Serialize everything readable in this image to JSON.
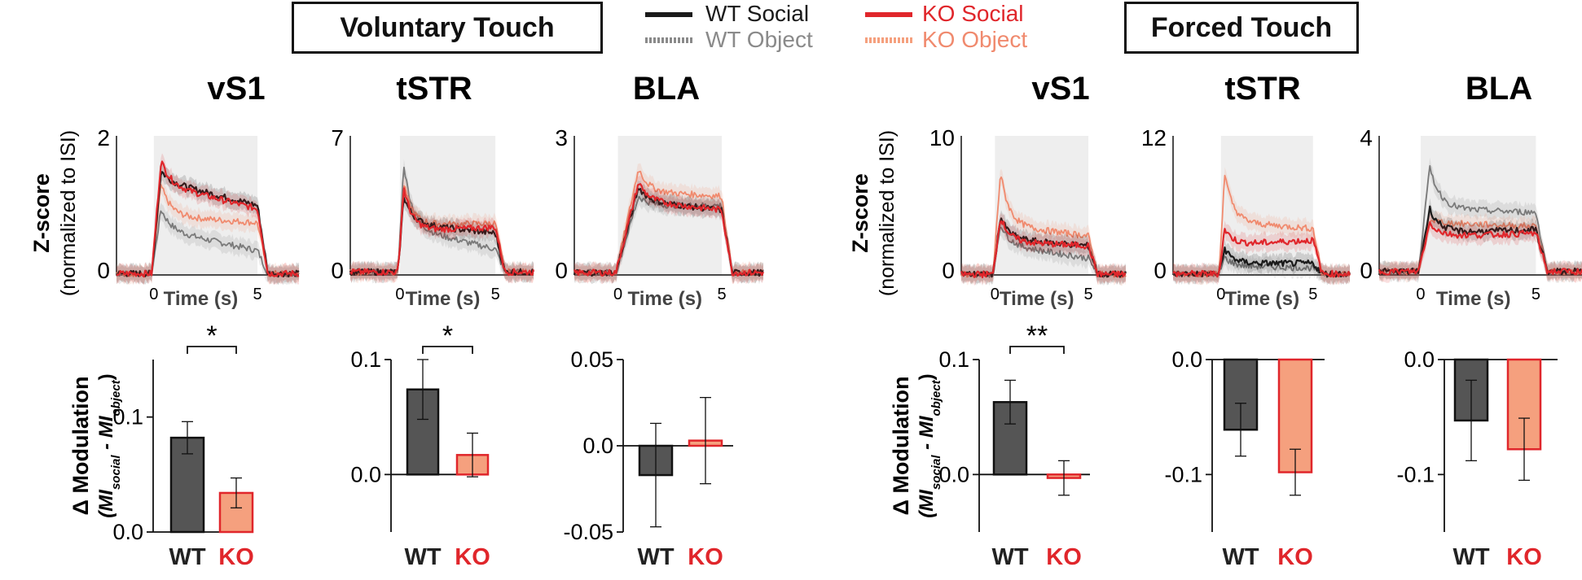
{
  "headers": {
    "voluntary": "Voluntary Touch",
    "forced": "Forced Touch"
  },
  "legend": {
    "wt_social": "WT Social",
    "wt_object": "WT Object",
    "ko_social": "KO Social",
    "ko_object": "KO Object"
  },
  "colors": {
    "wt_social": "#1a1a1a",
    "wt_object": "#7a7a7a",
    "ko_social": "#e0262b",
    "ko_object": "#f08a6e",
    "wt_bar": "#555555",
    "ko_bar": "#f5a07e",
    "ko_label": "#e0262b",
    "stim_shade": "#eeeeee"
  },
  "trace_ylabel": [
    "Z-score",
    "(normalized to ISI)"
  ],
  "bar_ylabel": [
    "Δ Modulation",
    "(MI",
    "social",
    " - MI",
    "object",
    ")"
  ],
  "chart_data": [
    {
      "type": "line",
      "region": "vS1",
      "condition": "Voluntary Touch",
      "title": "vS1",
      "xlabel": "Time (s)",
      "xticks": [
        "0",
        "5"
      ],
      "xlim": [
        -1.8,
        7
      ],
      "stim_window": [
        0,
        5
      ],
      "ylim": [
        0,
        2
      ],
      "yticks": [
        "0",
        "2"
      ],
      "series": [
        {
          "name": "WT Social",
          "peak_t": 0.35,
          "peak": 1.5,
          "plateau_start": 1.35,
          "plateau_end": 1.0,
          "baseline": 0.02
        },
        {
          "name": "WT Object",
          "peak_t": 0.35,
          "peak": 0.95,
          "plateau_start": 0.65,
          "plateau_end": 0.35,
          "baseline": 0.02
        },
        {
          "name": "KO Social",
          "peak_t": 0.35,
          "peak": 1.65,
          "plateau_start": 1.3,
          "plateau_end": 0.95,
          "baseline": 0.02
        },
        {
          "name": "KO Object",
          "peak_t": 0.35,
          "peak": 1.3,
          "plateau_start": 0.85,
          "plateau_end": 0.75,
          "baseline": 0.02
        }
      ]
    },
    {
      "type": "line",
      "region": "tSTR",
      "condition": "Voluntary Touch",
      "title": "tSTR",
      "xlabel": "Time (s)",
      "xticks": [
        "0",
        "5"
      ],
      "xlim": [
        -2.6,
        7
      ],
      "stim_window": [
        0,
        5
      ],
      "ylim": [
        0,
        7
      ],
      "yticks": [
        "0",
        "7"
      ],
      "series": [
        {
          "name": "WT Social",
          "peak_t": 0.2,
          "peak": 4.0,
          "plateau_start": 2.6,
          "plateau_end": 2.1,
          "baseline": 0.15
        },
        {
          "name": "WT Object",
          "peak_t": 0.2,
          "peak": 5.6,
          "plateau_start": 2.4,
          "plateau_end": 1.3,
          "baseline": 0.15
        },
        {
          "name": "KO Social",
          "peak_t": 0.2,
          "peak": 4.4,
          "plateau_start": 2.2,
          "plateau_end": 2.4,
          "baseline": 0.15
        },
        {
          "name": "KO Object",
          "peak_t": 0.2,
          "peak": 4.6,
          "plateau_start": 2.5,
          "plateau_end": 2.6,
          "baseline": 0.15
        }
      ]
    },
    {
      "type": "line",
      "region": "BLA",
      "condition": "Voluntary Touch",
      "title": "BLA",
      "xlabel": "Time (s)",
      "xticks": [
        "0",
        "5"
      ],
      "xlim": [
        -2.1,
        7
      ],
      "stim_window": [
        0,
        5
      ],
      "ylim": [
        0,
        3
      ],
      "yticks": [
        "0",
        "3"
      ],
      "series": [
        {
          "name": "WT Social",
          "peak_t": 1.0,
          "peak": 1.9,
          "plateau_start": 1.6,
          "plateau_end": 1.4,
          "baseline": 0.05
        },
        {
          "name": "WT Object",
          "peak_t": 1.0,
          "peak": 1.7,
          "plateau_start": 1.5,
          "plateau_end": 1.5,
          "baseline": 0.05
        },
        {
          "name": "KO Social",
          "peak_t": 1.0,
          "peak": 2.0,
          "plateau_start": 1.6,
          "plateau_end": 1.4,
          "baseline": 0.05
        },
        {
          "name": "KO Object",
          "peak_t": 1.0,
          "peak": 2.3,
          "plateau_start": 1.8,
          "plateau_end": 1.7,
          "baseline": 0.05
        }
      ]
    },
    {
      "type": "line",
      "region": "vS1",
      "condition": "Forced Touch",
      "title": "vS1",
      "xlabel": "Time (s)",
      "xticks": [
        "0",
        "5"
      ],
      "xlim": [
        -1.8,
        7
      ],
      "stim_window": [
        0,
        5
      ],
      "ylim": [
        0,
        10
      ],
      "yticks": [
        "0",
        "10"
      ],
      "series": [
        {
          "name": "WT Social",
          "peak_t": 0.3,
          "peak": 4.2,
          "plateau_start": 2.6,
          "plateau_end": 2.1,
          "baseline": 0.05
        },
        {
          "name": "WT Object",
          "peak_t": 0.3,
          "peak": 3.7,
          "plateau_start": 2.2,
          "plateau_end": 1.2,
          "baseline": 0.05
        },
        {
          "name": "KO Social",
          "peak_t": 0.3,
          "peak": 4.2,
          "plateau_start": 2.4,
          "plateau_end": 2.1,
          "baseline": 0.05
        },
        {
          "name": "KO Object",
          "peak_t": 0.3,
          "peak": 7.4,
          "plateau_start": 3.6,
          "plateau_end": 2.8,
          "baseline": 0.05
        }
      ]
    },
    {
      "type": "line",
      "region": "tSTR",
      "condition": "Forced Touch",
      "title": "tSTR",
      "xlabel": "Time (s)",
      "xticks": [
        "0",
        "5"
      ],
      "xlim": [
        -2.6,
        7
      ],
      "stim_window": [
        0,
        5
      ],
      "ylim": [
        0,
        12
      ],
      "yticks": [
        "0",
        "12"
      ],
      "series": [
        {
          "name": "WT Social",
          "peak_t": 0.2,
          "peak": 2.3,
          "plateau_start": 1.0,
          "plateau_end": 1.0,
          "baseline": 0.1
        },
        {
          "name": "WT Object",
          "peak_t": 0.2,
          "peak": 1.5,
          "plateau_start": 0.8,
          "plateau_end": 0.6,
          "baseline": 0.1
        },
        {
          "name": "KO Social",
          "peak_t": 0.2,
          "peak": 4.0,
          "plateau_start": 2.6,
          "plateau_end": 3.0,
          "baseline": 0.1
        },
        {
          "name": "KO Object",
          "peak_t": 0.2,
          "peak": 8.8,
          "plateau_start": 4.6,
          "plateau_end": 4.0,
          "baseline": 0.1
        }
      ]
    },
    {
      "type": "line",
      "region": "BLA",
      "condition": "Forced Touch",
      "title": "BLA",
      "xlabel": "Time (s)",
      "xticks": [
        "0",
        "5"
      ],
      "xlim": [
        -1.8,
        7
      ],
      "stim_window": [
        0,
        5
      ],
      "ylim": [
        0,
        4
      ],
      "yticks": [
        "0",
        "4"
      ],
      "series": [
        {
          "name": "WT Social",
          "peak_t": 0.4,
          "peak": 1.9,
          "plateau_start": 1.2,
          "plateau_end": 1.3,
          "baseline": 0.1
        },
        {
          "name": "WT Object",
          "peak_t": 0.4,
          "peak": 3.1,
          "plateau_start": 1.9,
          "plateau_end": 1.8,
          "baseline": 0.1
        },
        {
          "name": "KO Social",
          "peak_t": 0.4,
          "peak": 1.5,
          "plateau_start": 1.1,
          "plateau_end": 1.2,
          "baseline": 0.1
        },
        {
          "name": "KO Object",
          "peak_t": 0.4,
          "peak": 1.6,
          "plateau_start": 1.5,
          "plateau_end": 1.4,
          "baseline": 0.1
        }
      ]
    },
    {
      "type": "bar",
      "region": "vS1",
      "condition": "Voluntary Touch",
      "categories": [
        "WT",
        "KO"
      ],
      "values": [
        0.082,
        0.034
      ],
      "errors": [
        0.014,
        0.013
      ],
      "ylim": [
        0,
        0.15
      ],
      "yticks": [
        {
          "v": 0.0,
          "label": "0.0"
        },
        {
          "v": 0.1,
          "label": "0.1"
        }
      ],
      "significance": "*"
    },
    {
      "type": "bar",
      "region": "tSTR",
      "condition": "Voluntary Touch",
      "categories": [
        "WT",
        "KO"
      ],
      "values": [
        0.074,
        0.017
      ],
      "errors": [
        0.026,
        0.019
      ],
      "ylim": [
        -0.05,
        0.1
      ],
      "yticks": [
        {
          "v": 0.0,
          "label": "0.0"
        },
        {
          "v": 0.1,
          "label": "0.1"
        }
      ],
      "significance": "*"
    },
    {
      "type": "bar",
      "region": "BLA",
      "condition": "Voluntary Touch",
      "categories": [
        "WT",
        "KO"
      ],
      "values": [
        -0.017,
        0.003
      ],
      "errors": [
        0.03,
        0.025
      ],
      "ylim": [
        -0.05,
        0.05
      ],
      "yticks": [
        {
          "v": 0.05,
          "label": "0.05"
        },
        {
          "v": 0.0,
          "label": "0.0"
        },
        {
          "v": -0.05,
          "label": "-0.05"
        }
      ],
      "significance": ""
    },
    {
      "type": "bar",
      "region": "vS1",
      "condition": "Forced Touch",
      "categories": [
        "WT",
        "KO"
      ],
      "values": [
        0.063,
        -0.003
      ],
      "errors": [
        0.019,
        0.015
      ],
      "ylim": [
        -0.05,
        0.1
      ],
      "yticks": [
        {
          "v": 0.0,
          "label": "0.0"
        },
        {
          "v": 0.1,
          "label": "0.1"
        }
      ],
      "significance": "**"
    },
    {
      "type": "bar",
      "region": "tSTR",
      "condition": "Forced Touch",
      "categories": [
        "WT",
        "KO"
      ],
      "values": [
        -0.061,
        -0.098
      ],
      "errors": [
        0.023,
        0.02
      ],
      "ylim": [
        -0.15,
        0.0
      ],
      "yticks": [
        {
          "v": 0.0,
          "label": "0.0"
        },
        {
          "v": -0.1,
          "label": "-0.1"
        }
      ],
      "significance": ""
    },
    {
      "type": "bar",
      "region": "BLA",
      "condition": "Forced Touch",
      "categories": [
        "WT",
        "KO"
      ],
      "values": [
        -0.053,
        -0.078
      ],
      "errors": [
        0.035,
        0.027
      ],
      "ylim": [
        -0.15,
        0.0
      ],
      "yticks": [
        {
          "v": 0.0,
          "label": "0.0"
        },
        {
          "v": -0.1,
          "label": "-0.1"
        }
      ],
      "significance": ""
    }
  ]
}
